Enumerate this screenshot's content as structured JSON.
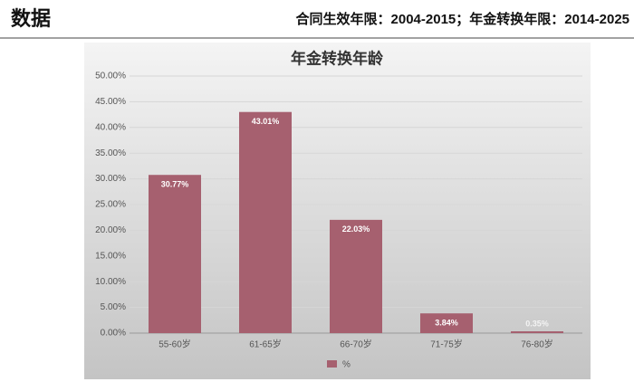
{
  "header": {
    "title": "数据",
    "subtitle": "合同生效年限：2004-2015；年金转换年限：2014-2025"
  },
  "chart_data": {
    "type": "bar",
    "title": "年金转换年龄",
    "categories": [
      "55-60岁",
      "61-65岁",
      "66-70岁",
      "71-75岁",
      "76-80岁"
    ],
    "series": [
      {
        "name": "%",
        "color": "#a6606f",
        "values": [
          30.77,
          43.01,
          22.03,
          3.84,
          0.35
        ],
        "value_labels": [
          "30.77%",
          "43.01%",
          "22.03%",
          "3.84%",
          "0.35%"
        ]
      }
    ],
    "ylim": [
      0,
      50
    ],
    "yticks": [
      {
        "value": 0,
        "label": "0.00%"
      },
      {
        "value": 5,
        "label": "5.00%"
      },
      {
        "value": 10,
        "label": "10.00%"
      },
      {
        "value": 15,
        "label": "15.00%"
      },
      {
        "value": 20,
        "label": "20.00%"
      },
      {
        "value": 25,
        "label": "25.00%"
      },
      {
        "value": 30,
        "label": "30.00%"
      },
      {
        "value": 35,
        "label": "35.00%"
      },
      {
        "value": 40,
        "label": "40.00%"
      },
      {
        "value": 45,
        "label": "45.00%"
      },
      {
        "value": 50,
        "label": "50.00%"
      }
    ],
    "grid": true,
    "legend": "bottom"
  }
}
